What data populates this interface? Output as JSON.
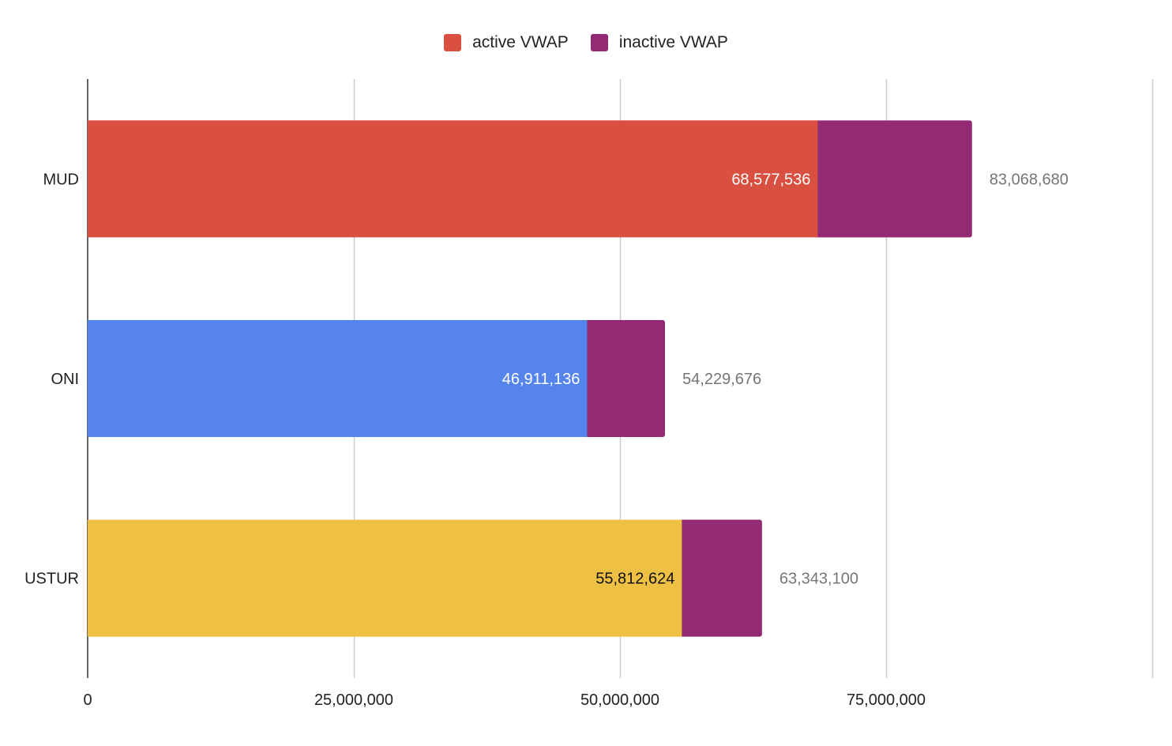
{
  "chart_data": {
    "type": "bar",
    "orientation": "horizontal",
    "stacked": true,
    "categories": [
      "MUD",
      "ONI",
      "USTUR"
    ],
    "series": [
      {
        "name": "active VWAP",
        "values": [
          68577536,
          46911136,
          55812624
        ],
        "legend_color": "#d95040",
        "point_colors": [
          "#d95040",
          "#5585ec",
          "#eec043"
        ],
        "label_colors": [
          "#ffffff",
          "#ffffff",
          "#111111"
        ],
        "data_labels": [
          "68,577,536",
          "46,911,136",
          "55,812,624"
        ]
      },
      {
        "name": "inactive VWAP",
        "values": [
          14491144,
          7318540,
          7530476
        ],
        "legend_color": "#922b73"
      }
    ],
    "totals": [
      83068680,
      54229676,
      63343100
    ],
    "total_labels": [
      "83,068,680",
      "54,229,676",
      "63,343,100"
    ],
    "xlim": [
      0,
      100000000
    ],
    "xticks": [
      0,
      25000000,
      50000000,
      75000000,
      100000000
    ],
    "xtick_labels": [
      "0",
      "25,000,000",
      "50,000,000",
      "75,000,000",
      ""
    ],
    "title": "",
    "xlabel": "",
    "ylabel": "",
    "grid": true,
    "legend_position": "top-center"
  }
}
